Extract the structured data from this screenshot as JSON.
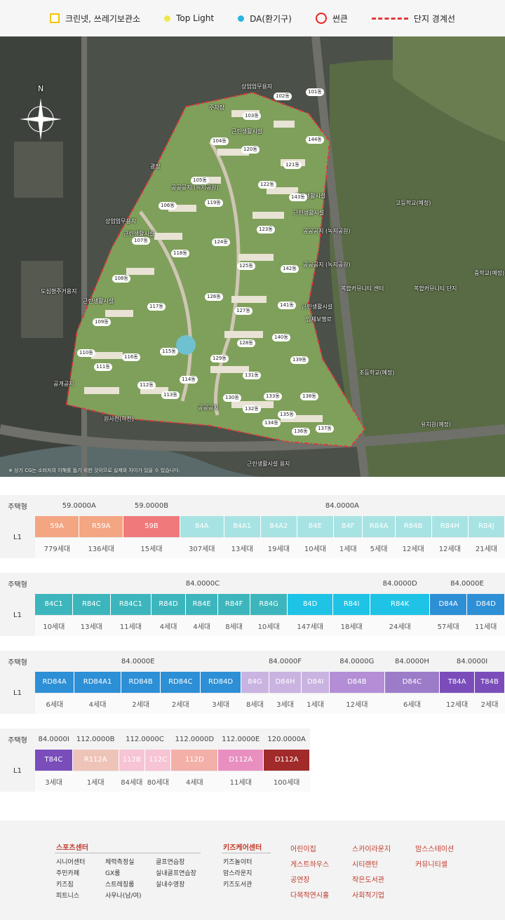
{
  "legend": [
    {
      "label": "크린넷, 쓰레기보관소",
      "icon": "square-yellow-icon"
    },
    {
      "label": "Top Light",
      "icon": "yellow-dot-icon",
      "color": "#f0e84a"
    },
    {
      "label": "DA(환기구)",
      "icon": "cyan-dot-icon",
      "color": "#2ab3e6"
    },
    {
      "label": "썬큰",
      "icon": "red-ring-icon"
    },
    {
      "label": "단지 경계선",
      "icon": "boundary-line-icon"
    }
  ],
  "map": {
    "compass": "N",
    "labels": [
      "상업업무용지",
      "주차장",
      "광장",
      "공공공지\n(녹지공원)",
      "상업업무용지",
      "근린생활시설",
      "도심형주거용지",
      "근린생활시설",
      "공개공지",
      "근린생활시설",
      "공공공지\n(녹지공원)",
      "근린생활시설",
      "근린생활시설",
      "공공공지\n(녹지공원)",
      "고등학교(예정)",
      "중학교(예정)",
      "복합커뮤니티 센터",
      "복합커뮤니티 단지",
      "근린생활시설",
      "입체보행로",
      "초등학교(예정)",
      "유치원(예정)",
      "원사천(하천)",
      "근린생활시설 용지",
      "공공공지"
    ],
    "buildings": [
      "101동",
      "102동",
      "103동",
      "104동",
      "105동",
      "106동",
      "107동",
      "108동",
      "109동",
      "110동",
      "111동",
      "112동",
      "113동",
      "114동",
      "115동",
      "116동",
      "117동",
      "118동",
      "119동",
      "120동",
      "121동",
      "122동",
      "123동",
      "124동",
      "125동",
      "126동",
      "127동",
      "128동",
      "129동",
      "130동",
      "131동",
      "132동",
      "133동",
      "134동",
      "135동",
      "136동",
      "137동",
      "138동",
      "139동",
      "140동",
      "141동",
      "142동",
      "143동",
      "144동"
    ],
    "note": "※ 상기 CG는 소비자의 이해를 돕기 위한 것이므로 실제와 차이가 있을 수 있습니다."
  },
  "tables": [
    {
      "head_label": "주택형",
      "row_label": "L1",
      "groups": [
        {
          "name": "59.0000A",
          "span": 2
        },
        {
          "name": "59.0000B",
          "span": 1
        },
        {
          "name": "84.0000A",
          "span": 9
        }
      ],
      "types": [
        {
          "name": "59A",
          "color": "#f4a582",
          "count": "779세대"
        },
        {
          "name": "R59A",
          "color": "#f4a582",
          "count": "136세대"
        },
        {
          "name": "59B",
          "color": "#f0797b",
          "count": "15세대"
        },
        {
          "name": "84A",
          "color": "#a8e3e3",
          "count": "307세대"
        },
        {
          "name": "84A1",
          "color": "#a8e3e3",
          "count": "13세대"
        },
        {
          "name": "84A2",
          "color": "#a8e3e3",
          "count": "19세대"
        },
        {
          "name": "84E",
          "color": "#a8e3e3",
          "count": "10세대"
        },
        {
          "name": "84F",
          "color": "#a8e3e3",
          "count": "1세대"
        },
        {
          "name": "R84A",
          "color": "#a8e3e3",
          "count": "5세대"
        },
        {
          "name": "R84B",
          "color": "#a8e3e3",
          "count": "12세대"
        },
        {
          "name": "R84H",
          "color": "#a8e3e3",
          "count": "12세대"
        },
        {
          "name": "R84J",
          "color": "#a8e3e3",
          "count": "21세대"
        }
      ]
    },
    {
      "head_label": "주택형",
      "row_label": "L1",
      "groups": [
        {
          "name": "84.0000C",
          "span": 9
        },
        {
          "name": "84.0000D",
          "span": 1
        },
        {
          "name": "84.0000E",
          "span": 2
        }
      ],
      "types": [
        {
          "name": "84C1",
          "color": "#3cb6bc",
          "count": "10세대"
        },
        {
          "name": "R84C",
          "color": "#3cb6bc",
          "count": "13세대"
        },
        {
          "name": "R84C1",
          "color": "#3cb6bc",
          "count": "11세대"
        },
        {
          "name": "R84D",
          "color": "#3cb6bc",
          "count": "4세대"
        },
        {
          "name": "R84E",
          "color": "#3cb6bc",
          "count": "4세대"
        },
        {
          "name": "R84F",
          "color": "#3cb6bc",
          "count": "8세대"
        },
        {
          "name": "R84G",
          "color": "#3cb6bc",
          "count": "10세대"
        },
        {
          "name": "84D",
          "color": "#1fc3e6",
          "count": "147세대"
        },
        {
          "name": "R84I",
          "color": "#1fc3e6",
          "count": "18세대"
        },
        {
          "name": "R84K",
          "color": "#1fc3e6",
          "count": "24세대"
        },
        {
          "name": "D84A",
          "color": "#2d8fd6",
          "count": "57세대"
        },
        {
          "name": "D84D",
          "color": "#2d8fd6",
          "count": "11세대"
        }
      ]
    },
    {
      "head_label": "주택형",
      "row_label": "L1",
      "groups": [
        {
          "name": "84.0000E",
          "span": 6
        },
        {
          "name": "84.0000F",
          "span": 3
        },
        {
          "name": "84.0000G",
          "span": 1
        },
        {
          "name": "84.0000H",
          "span": 1
        },
        {
          "name": "84.0000I",
          "span": 1
        }
      ],
      "types": [
        {
          "name": "RD84A",
          "color": "#2d8fd6",
          "count": "6세대"
        },
        {
          "name": "RD84A1",
          "color": "#2d8fd6",
          "count": "4세대"
        },
        {
          "name": "RD84B",
          "color": "#2d8fd6",
          "count": "2세대"
        },
        {
          "name": "RD84C",
          "color": "#2d8fd6",
          "count": "2세대"
        },
        {
          "name": "RD84D",
          "color": "#2d8fd6",
          "count": "3세대"
        },
        {
          "name": "84G",
          "color": "#c9b3e0",
          "count": "8세대"
        },
        {
          "name": "D84H",
          "color": "#c9b3e0",
          "count": "3세대"
        },
        {
          "name": "D84I",
          "color": "#c9b3e0",
          "count": "1세대"
        },
        {
          "name": "D84B",
          "color": "#b38ed6",
          "count": "12세대"
        },
        {
          "name": "D84C",
          "color": "#9c7cc9",
          "count": "6세대"
        },
        {
          "name": "T84A",
          "color": "#7a4dbb",
          "count": "12세대"
        },
        {
          "name": "T84B",
          "color": "#7a4dbb",
          "count": "2세대"
        }
      ]
    },
    {
      "head_label": "주택형",
      "row_label": "L1",
      "groups": [
        {
          "name": "84.0000I",
          "span": 1
        },
        {
          "name": "112.0000B",
          "span": 1
        },
        {
          "name": "112.0000C",
          "span": 2
        },
        {
          "name": "112.0000D",
          "span": 1
        },
        {
          "name": "112.0000E",
          "span": 1
        },
        {
          "name": "120.0000A",
          "span": 1
        }
      ],
      "types": [
        {
          "name": "T84C",
          "color": "#7a4dbb",
          "count": "3세대"
        },
        {
          "name": "R112A",
          "color": "#eec4b8",
          "count": "1세대"
        },
        {
          "name": "112B",
          "color": "#f6c4d4",
          "count": "84세대"
        },
        {
          "name": "112C",
          "color": "#f6c4d4",
          "count": "80세대"
        },
        {
          "name": "112D",
          "color": "#f3b0a8",
          "count": "4세대"
        },
        {
          "name": "D112A",
          "color": "#e88fc0",
          "count": "11세대"
        },
        {
          "name": "D112A",
          "color": "#a12a2a",
          "count": "100세대"
        }
      ]
    }
  ],
  "facilities": {
    "sports": {
      "title": "스포츠센터",
      "col1": [
        "시니어센터",
        "주민카페",
        "키즈짐",
        "피트니스"
      ],
      "col2": [
        "체력측정실",
        "GX룸",
        "스트레칭룸",
        "사우나(남/여)"
      ],
      "col3": [
        "골프연습장",
        "실내골프연습장",
        "실내수영장"
      ]
    },
    "kids": {
      "title": "키즈케어센터",
      "items": [
        "키즈놀이터",
        "맘스라운지",
        "키즈도서관"
      ]
    },
    "others": {
      "col1": [
        "어린이집",
        "게스트하우스",
        "공연장",
        "다목적연시홀"
      ],
      "col2": [
        "스카이라운지",
        "시티랜턴",
        "작은도서관",
        "사회적기업"
      ],
      "col3": [
        "맘스스테이션",
        "커뮤니티셀"
      ]
    }
  }
}
